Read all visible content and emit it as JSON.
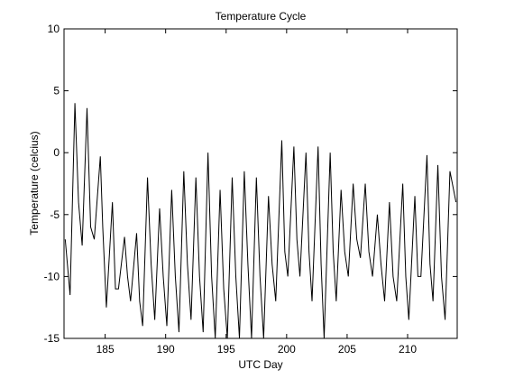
{
  "chart_data": {
    "type": "line",
    "title": "Temperature Cycle",
    "xlabel": "UTC Day",
    "ylabel": "Temperature (celcius)",
    "xlim": [
      181.6,
      214.1
    ],
    "ylim": [
      -15,
      10
    ],
    "xticks": [
      185,
      190,
      195,
      200,
      205,
      210
    ],
    "yticks": [
      -15,
      -10,
      -5,
      0,
      5,
      10
    ],
    "grid": false,
    "series": [
      {
        "color": "#000000",
        "x": [
          181.7,
          182.1,
          182.5,
          182.8,
          183.1,
          183.5,
          183.8,
          184.1,
          184.6,
          184.8,
          185.1,
          185.6,
          185.85,
          186.1,
          186.6,
          186.85,
          187.1,
          187.6,
          187.85,
          188.1,
          188.5,
          188.8,
          189.1,
          189.5,
          189.8,
          190.1,
          190.5,
          190.8,
          191.1,
          191.5,
          191.8,
          192.1,
          192.5,
          192.8,
          193.1,
          193.5,
          193.8,
          194.1,
          194.5,
          194.8,
          195.1,
          195.5,
          195.8,
          196.1,
          196.5,
          196.8,
          197.1,
          197.5,
          197.8,
          198.1,
          198.5,
          198.8,
          199.1,
          199.6,
          199.85,
          200.1,
          200.6,
          200.85,
          201.1,
          201.6,
          201.85,
          202.1,
          202.6,
          202.85,
          203.1,
          203.6,
          203.85,
          204.1,
          204.5,
          204.8,
          205.1,
          205.5,
          205.8,
          206.1,
          206.5,
          206.8,
          207.1,
          207.5,
          207.8,
          208.1,
          208.5,
          208.8,
          209.1,
          209.6,
          209.85,
          210.1,
          210.6,
          210.85,
          211.1,
          211.6,
          211.85,
          212.1,
          212.5,
          212.8,
          213.1,
          213.5,
          214.0
        ],
        "values": [
          -7,
          -11.5,
          4,
          -4,
          -7.5,
          3.6,
          -6,
          -7,
          -0.3,
          -6,
          -12.5,
          -4,
          -11,
          -11,
          -6.8,
          -10,
          -12,
          -6.5,
          -12,
          -14,
          -2,
          -9,
          -13.5,
          -4.5,
          -10,
          -14,
          -3,
          -10,
          -14.5,
          -1.5,
          -9,
          -13.5,
          -2,
          -10,
          -14.5,
          0,
          -10,
          -15,
          -3,
          -11,
          -15,
          -2,
          -10,
          -15,
          -1.5,
          -9,
          -15,
          -2,
          -10,
          -15,
          -3.5,
          -9,
          -12,
          1,
          -8,
          -10,
          0.5,
          -7,
          -10,
          0,
          -8,
          -12,
          0.5,
          -9,
          -15,
          0,
          -8,
          -12,
          -3,
          -8,
          -10,
          -2.5,
          -7,
          -8.5,
          -2.5,
          -8,
          -10,
          -5,
          -9,
          -12,
          -4,
          -10,
          -12,
          -2.5,
          -10,
          -13.5,
          -3.5,
          -10,
          -10,
          -0.2,
          -9,
          -12,
          -1,
          -10,
          -13.5,
          -1.5,
          -4
        ]
      }
    ]
  }
}
